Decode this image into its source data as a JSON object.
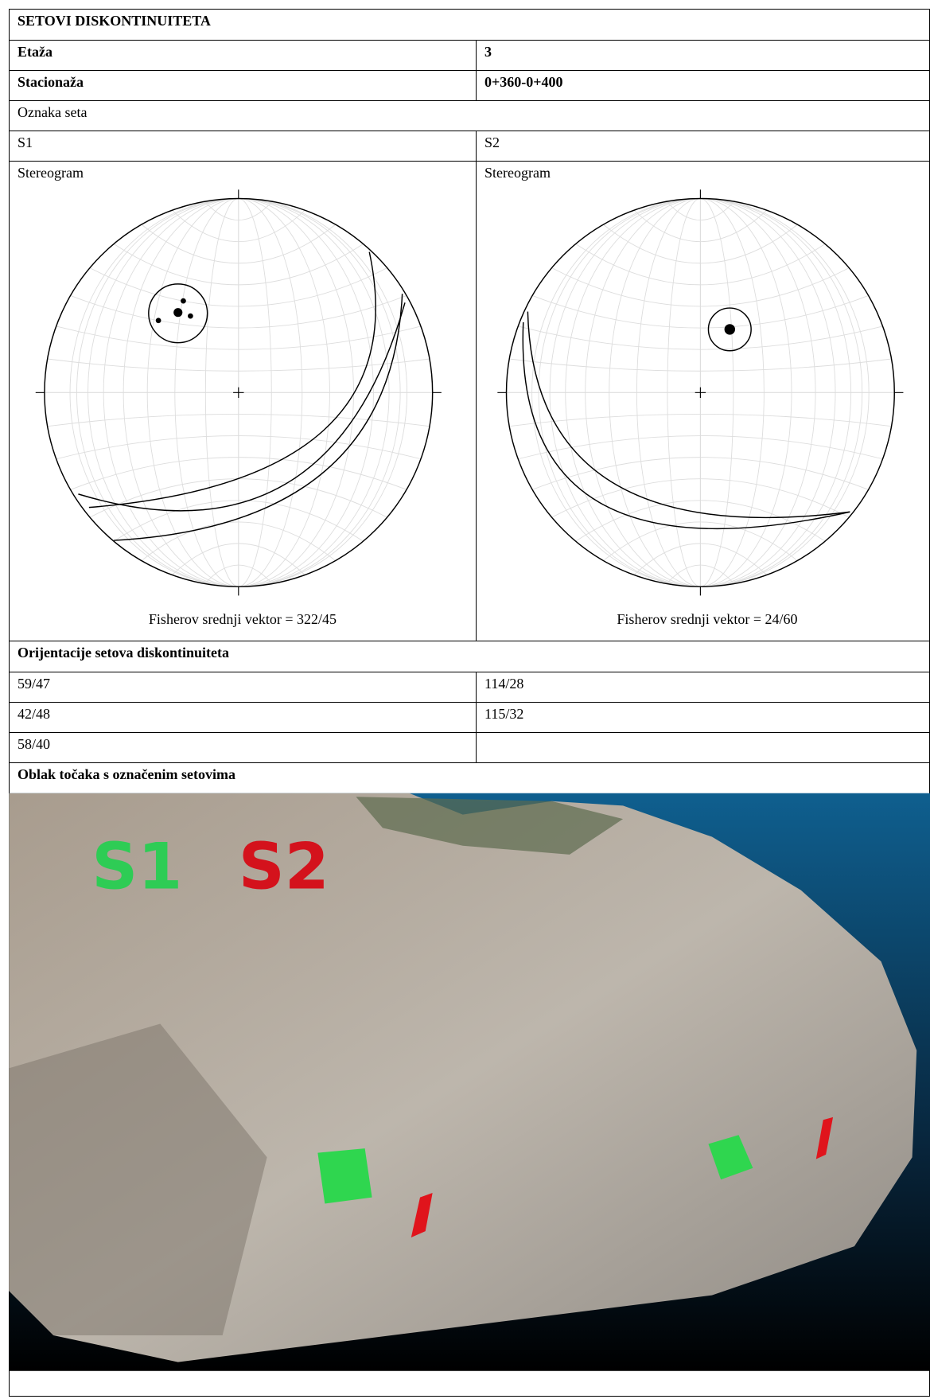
{
  "header": {
    "title": "SETOVI DISKONTINUITETA"
  },
  "info": [
    {
      "label": "Etaža",
      "value": "3"
    },
    {
      "label": "Stacionaža",
      "value": "0+360-0+400"
    }
  ],
  "sets": {
    "label": "Oznaka seta",
    "names": [
      "S1",
      "S2"
    ]
  },
  "stereograms": [
    {
      "label": "Stereogram",
      "caption": "Fisherov srednji vektor = 322/45"
    },
    {
      "label": "Stereogram",
      "caption": "Fisherov srednji vektor = 24/60"
    }
  ],
  "orientations": {
    "label": "Orijentacije setova diskontinuiteta",
    "S1": [
      "59/47",
      "42/48",
      "58/40"
    ],
    "S2": [
      "114/28",
      "115/32"
    ]
  },
  "point_cloud": {
    "label": "Oblak točaka s označenim setovima",
    "labels": [
      "S1",
      "S2"
    ]
  }
}
